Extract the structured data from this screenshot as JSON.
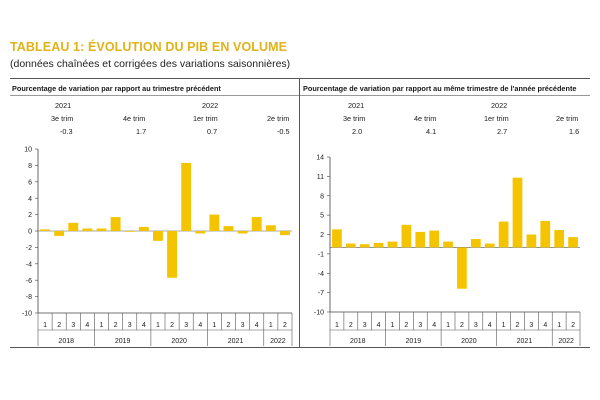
{
  "title": "TABLEAU 1: ÉVOLUTION DU PIB EN VOLUME",
  "subtitle": "(données chaînées et corrigées des variations saisonnières)",
  "colors": {
    "bar": "#f5c400",
    "title": "#e0b31a",
    "rule": "#555555"
  },
  "left_panel": {
    "header": "Pourcentage de variation par rapport au trimestre précédent",
    "summary": [
      {
        "year": "2021",
        "quarter": "3e trim",
        "value": "-0.3"
      },
      {
        "year": "",
        "quarter": "4e trim",
        "value": "1.7"
      },
      {
        "year": "2022",
        "quarter": "1er trim",
        "value": "0.7"
      },
      {
        "year": "",
        "quarter": "2e trim",
        "value": "-0.5"
      }
    ]
  },
  "right_panel": {
    "header": "Pourcentage de variation par rapport au même trimestre de l'année précédente",
    "summary": [
      {
        "year": "2021",
        "quarter": "3e trim",
        "value": "2.0"
      },
      {
        "year": "",
        "quarter": "4e trim",
        "value": "4.1"
      },
      {
        "year": "2022",
        "quarter": "1er trim",
        "value": "2.7"
      },
      {
        "year": "",
        "quarter": "2e trim",
        "value": "1.6"
      }
    ]
  },
  "chart_data": [
    {
      "type": "bar",
      "quarters": [
        "1",
        "2",
        "3",
        "4",
        "1",
        "2",
        "3",
        "4",
        "1",
        "2",
        "3",
        "4",
        "1",
        "2",
        "3",
        "4",
        "1",
        "2"
      ],
      "years": [
        "2018",
        "2019",
        "2020",
        "2021",
        "2022"
      ],
      "values": [
        0.2,
        -0.6,
        1.0,
        0.3,
        0.3,
        1.7,
        -0.1,
        0.5,
        -1.2,
        -5.7,
        8.3,
        -0.3,
        2.0,
        0.6,
        -0.3,
        1.7,
        0.7,
        -0.5
      ],
      "ylim": [
        -10,
        10
      ],
      "yticks": [
        -10,
        -8,
        -6,
        -4,
        -2,
        0,
        2,
        4,
        6,
        8,
        10
      ]
    },
    {
      "type": "bar",
      "quarters": [
        "1",
        "2",
        "3",
        "4",
        "1",
        "2",
        "3",
        "4",
        "1",
        "2",
        "3",
        "4",
        "1",
        "2",
        "3",
        "4",
        "1",
        "2"
      ],
      "years": [
        "2018",
        "2019",
        "2020",
        "2021",
        "2022"
      ],
      "values": [
        2.8,
        0.6,
        0.5,
        0.7,
        0.9,
        3.5,
        2.4,
        2.6,
        0.9,
        -6.4,
        1.3,
        0.6,
        4.0,
        10.8,
        2.0,
        4.1,
        2.7,
        1.6
      ],
      "ylim": [
        -10,
        14
      ],
      "yticks": [
        -10,
        -7,
        -4,
        -1,
        2,
        5,
        8,
        11,
        14
      ]
    }
  ]
}
